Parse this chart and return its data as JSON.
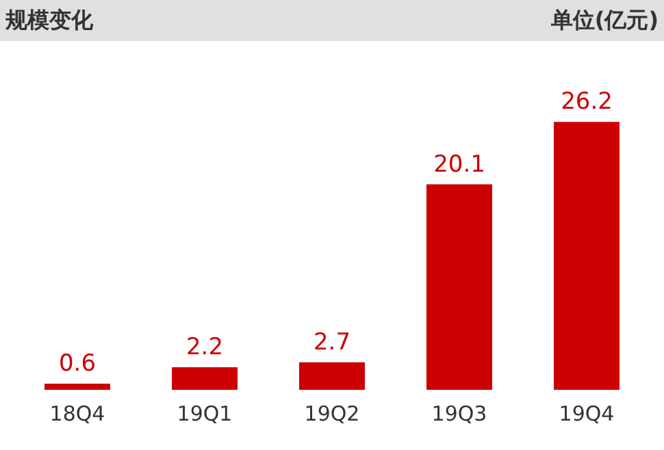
{
  "chart_data": {
    "type": "bar",
    "title": "规模变化",
    "subtitle": "单位(亿元)",
    "categories": [
      "18Q4",
      "19Q1",
      "19Q2",
      "19Q3",
      "19Q4"
    ],
    "values": [
      0.6,
      2.2,
      2.7,
      20.1,
      26.2
    ],
    "color": "#cc0000",
    "data_labels": true
  }
}
